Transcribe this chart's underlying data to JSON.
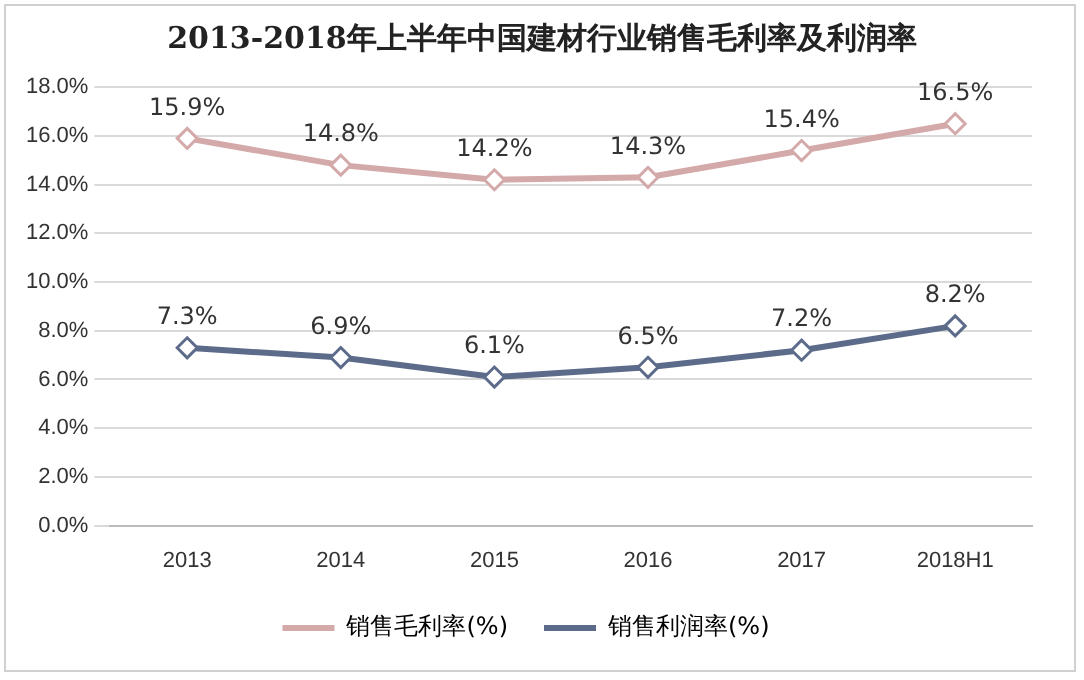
{
  "chart_data": {
    "type": "line",
    "title": "2013-2018年上半年中国建材行业销售毛利率及利润率",
    "categories": [
      "2013",
      "2014",
      "2015",
      "2016",
      "2017",
      "2018H1"
    ],
    "series": [
      {
        "name": "销售毛利率(%)",
        "color": "#d4a9a9",
        "values": [
          15.9,
          14.8,
          14.2,
          14.3,
          15.4,
          16.5
        ],
        "value_labels": [
          "15.9%",
          "14.8%",
          "14.2%",
          "14.3%",
          "15.4%",
          "16.5%"
        ]
      },
      {
        "name": "销售利润率(%)",
        "color": "#5d6b8a",
        "values": [
          7.3,
          6.9,
          6.1,
          6.5,
          7.2,
          8.2
        ],
        "value_labels": [
          "7.3%",
          "6.9%",
          "6.1%",
          "6.5%",
          "7.2%",
          "8.2%"
        ]
      }
    ],
    "ylim": [
      0,
      18
    ],
    "yticks": [
      {
        "value": 0,
        "label": "0.0%"
      },
      {
        "value": 2,
        "label": "2.0%"
      },
      {
        "value": 4,
        "label": "4.0%"
      },
      {
        "value": 6,
        "label": "6.0%"
      },
      {
        "value": 8,
        "label": "8.0%"
      },
      {
        "value": 10,
        "label": "10.0%"
      },
      {
        "value": 12,
        "label": "12.0%"
      },
      {
        "value": 14,
        "label": "14.0%"
      },
      {
        "value": 16,
        "label": "16.0%"
      },
      {
        "value": 18,
        "label": "18.0%"
      }
    ],
    "grid": "y",
    "legend": "bottom",
    "marker": "diamond",
    "line_style": "solid"
  }
}
